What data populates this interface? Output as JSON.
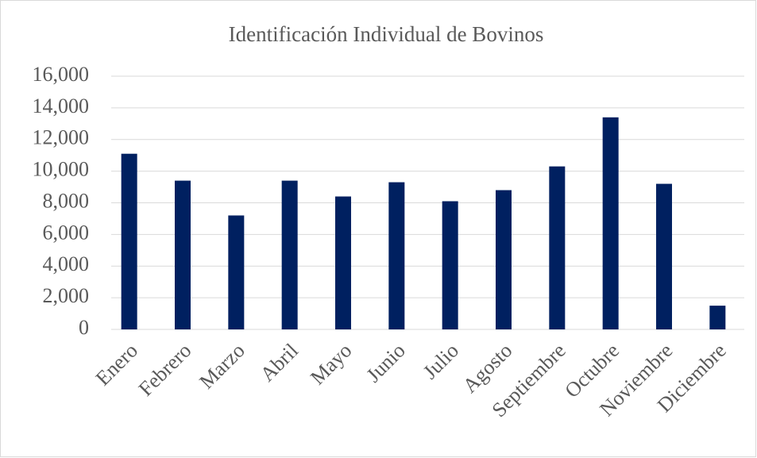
{
  "chart_data": {
    "type": "bar",
    "title": "Identificación Individual de Bovinos",
    "categories": [
      "Enero",
      "Febrero",
      "Marzo",
      "Abril",
      "Mayo",
      "Junio",
      "Julio",
      "Agosto",
      "Septiembre",
      "Octubre",
      "Noviembre",
      "Diciembre"
    ],
    "values": [
      11100,
      9400,
      7200,
      9400,
      8400,
      9300,
      8100,
      8800,
      10300,
      13400,
      9200,
      1500
    ],
    "color": "#002060",
    "ylim": [
      0,
      16000
    ],
    "yticks": [
      0,
      {
        "value": 2000,
        "label": "2,000"
      },
      {
        "value": 4000,
        "label": "4,000"
      },
      {
        "value": 6000,
        "label": "6,000"
      },
      {
        "value": 8000,
        "label": "8,000"
      },
      {
        "value": 10000,
        "label": "10,000"
      },
      {
        "value": 12000,
        "label": "12,000"
      },
      {
        "value": 14000,
        "label": "14,000"
      },
      {
        "value": 16000,
        "label": "16,000"
      }
    ],
    "grid": true
  }
}
